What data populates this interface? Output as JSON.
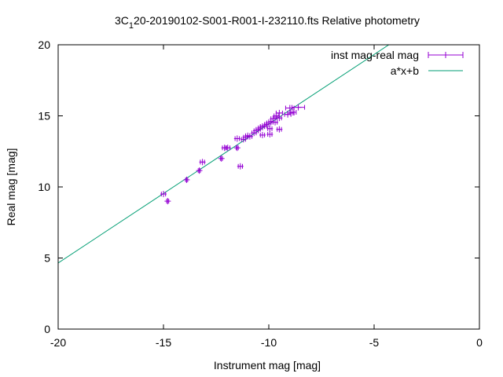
{
  "chart_data": {
    "type": "scatter",
    "title_prefix": "3C",
    "title_subscript": "1",
    "title_suffix": "20-20190102-S001-R001-I-232110.fts Relative photometry",
    "xlabel": "Instrument mag [mag]",
    "ylabel": "Real mag [mag]",
    "xlim": [
      -20,
      0
    ],
    "ylim": [
      0,
      20
    ],
    "xticks": [
      -20,
      -15,
      -10,
      -5,
      0
    ],
    "yticks": [
      0,
      5,
      10,
      15,
      20
    ],
    "xtick_labels": [
      "-20",
      "-15",
      "-10",
      "-5",
      "0"
    ],
    "ytick_labels": [
      "0",
      "5",
      "10",
      "15",
      "20"
    ],
    "legend_position": "top-right",
    "series": [
      {
        "name": "inst mag-real mag",
        "type": "scatter_errorbars",
        "color": "#9400d3",
        "points": [
          {
            "x": -15.0,
            "y": 9.5,
            "xerr": 0.1
          },
          {
            "x": -14.8,
            "y": 9.0,
            "xerr": 0.05
          },
          {
            "x": -13.9,
            "y": 10.5,
            "xerr": 0.05
          },
          {
            "x": -13.3,
            "y": 11.15,
            "xerr": 0.05
          },
          {
            "x": -13.15,
            "y": 11.75,
            "xerr": 0.1
          },
          {
            "x": -12.25,
            "y": 12.0,
            "xerr": 0.05
          },
          {
            "x": -12.1,
            "y": 12.75,
            "xerr": 0.1
          },
          {
            "x": -11.95,
            "y": 12.75,
            "xerr": 0.1
          },
          {
            "x": -11.5,
            "y": 13.4,
            "xerr": 0.1
          },
          {
            "x": -11.5,
            "y": 12.75,
            "xerr": 0.05
          },
          {
            "x": -11.35,
            "y": 11.45,
            "xerr": 0.1
          },
          {
            "x": -11.2,
            "y": 13.35,
            "xerr": 0.1
          },
          {
            "x": -11.1,
            "y": 13.5,
            "xerr": 0.1
          },
          {
            "x": -11.0,
            "y": 13.6,
            "xerr": 0.1
          },
          {
            "x": -10.9,
            "y": 13.55,
            "xerr": 0.1
          },
          {
            "x": -10.7,
            "y": 13.8,
            "xerr": 0.1
          },
          {
            "x": -10.6,
            "y": 13.95,
            "xerr": 0.1
          },
          {
            "x": -10.5,
            "y": 14.05,
            "xerr": 0.1
          },
          {
            "x": -10.4,
            "y": 14.15,
            "xerr": 0.1
          },
          {
            "x": -10.3,
            "y": 14.25,
            "xerr": 0.1
          },
          {
            "x": -10.2,
            "y": 14.3,
            "xerr": 0.1
          },
          {
            "x": -10.3,
            "y": 13.65,
            "xerr": 0.1
          },
          {
            "x": -10.1,
            "y": 14.4,
            "xerr": 0.1
          },
          {
            "x": -10.0,
            "y": 14.5,
            "xerr": 0.1
          },
          {
            "x": -9.95,
            "y": 14.1,
            "xerr": 0.1
          },
          {
            "x": -9.95,
            "y": 13.7,
            "xerr": 0.1
          },
          {
            "x": -9.9,
            "y": 14.6,
            "xerr": 0.1
          },
          {
            "x": -9.8,
            "y": 14.8,
            "xerr": 0.1
          },
          {
            "x": -9.7,
            "y": 14.55,
            "xerr": 0.1
          },
          {
            "x": -9.65,
            "y": 15.0,
            "xerr": 0.1
          },
          {
            "x": -9.5,
            "y": 14.05,
            "xerr": 0.1
          },
          {
            "x": -9.5,
            "y": 14.85,
            "xerr": 0.1
          },
          {
            "x": -9.5,
            "y": 15.2,
            "xerr": 0.15
          },
          {
            "x": -9.1,
            "y": 15.1,
            "xerr": 0.15
          },
          {
            "x": -9.0,
            "y": 15.55,
            "xerr": 0.2
          },
          {
            "x": -8.95,
            "y": 15.2,
            "xerr": 0.15
          },
          {
            "x": -8.85,
            "y": 15.25,
            "xerr": 0.15
          },
          {
            "x": -8.6,
            "y": 15.6,
            "xerr": 0.3
          }
        ]
      },
      {
        "name": "a*x+b",
        "type": "line",
        "color": "#009e73",
        "x": [
          -20,
          -4.3
        ],
        "y": [
          4.65,
          20
        ]
      }
    ]
  }
}
